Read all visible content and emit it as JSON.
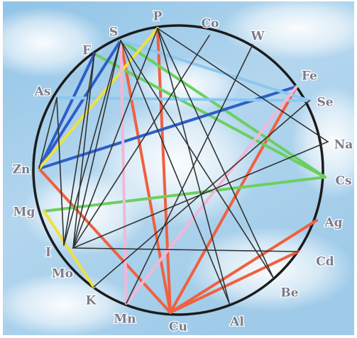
{
  "diagram": {
    "elements": [
      {
        "id": "P",
        "label": "P"
      },
      {
        "id": "Co",
        "label": "Co"
      },
      {
        "id": "W",
        "label": "W"
      },
      {
        "id": "Fe",
        "label": "Fe"
      },
      {
        "id": "Se",
        "label": "Se"
      },
      {
        "id": "Na",
        "label": "Na"
      },
      {
        "id": "Cs",
        "label": "Cs"
      },
      {
        "id": "Ag",
        "label": "Ag"
      },
      {
        "id": "Cd",
        "label": "Cd"
      },
      {
        "id": "Be",
        "label": "Be"
      },
      {
        "id": "Al",
        "label": "Al"
      },
      {
        "id": "Cu",
        "label": "Cu"
      },
      {
        "id": "Mn",
        "label": "Mn"
      },
      {
        "id": "K",
        "label": "K"
      },
      {
        "id": "Mo",
        "label": "Mo"
      },
      {
        "id": "I",
        "label": "I"
      },
      {
        "id": "Mg",
        "label": "Mg"
      },
      {
        "id": "Zn",
        "label": "Zn"
      },
      {
        "id": "As",
        "label": "As"
      },
      {
        "id": "F",
        "label": "F"
      },
      {
        "id": "S",
        "label": "S"
      }
    ],
    "connections": [
      {
        "from": "S",
        "to": "Cu",
        "color": "#f06040"
      },
      {
        "from": "P",
        "to": "Cu",
        "color": "#f06040"
      },
      {
        "from": "Fe",
        "to": "Cu",
        "color": "#f06040"
      },
      {
        "from": "Ag",
        "to": "Cu",
        "color": "#f06040"
      },
      {
        "from": "Cd",
        "to": "Cu",
        "color": "#f06040"
      },
      {
        "from": "Zn",
        "to": "Cu",
        "color": "#f06040"
      },
      {
        "from": "F",
        "to": "Cs",
        "color": "#6ccf60"
      },
      {
        "from": "S",
        "to": "Cs",
        "color": "#6ccf60"
      },
      {
        "from": "Mg",
        "to": "Cs",
        "color": "#6ccf60"
      },
      {
        "from": "Zn",
        "to": "Fe",
        "color": "#2d5fc8"
      },
      {
        "from": "Zn",
        "to": "S",
        "color": "#2d5fc8"
      },
      {
        "from": "Zn",
        "to": "F",
        "color": "#2d5fc8"
      },
      {
        "from": "S",
        "to": "Se",
        "color": "#8cc8f0"
      },
      {
        "from": "As",
        "to": "Se",
        "color": "#8cc8f0"
      },
      {
        "from": "P",
        "to": "Zn",
        "color": "#f0e040"
      },
      {
        "from": "Mg",
        "to": "K",
        "color": "#f0e040"
      },
      {
        "from": "Mn",
        "to": "Fe",
        "color": "#f0b8d8"
      },
      {
        "from": "Mn",
        "to": "S",
        "color": "#f0b8d8"
      },
      {
        "from": "Zn",
        "to": "As",
        "color": "#333333"
      },
      {
        "from": "I",
        "to": "As",
        "color": "#333333"
      },
      {
        "from": "I",
        "to": "S",
        "color": "#333333"
      },
      {
        "from": "I",
        "to": "F",
        "color": "#333333"
      },
      {
        "from": "Mo",
        "to": "F",
        "color": "#333333"
      },
      {
        "from": "Mo",
        "to": "S",
        "color": "#333333"
      },
      {
        "from": "Mo",
        "to": "P",
        "color": "#333333"
      },
      {
        "from": "Mo",
        "to": "Co",
        "color": "#333333"
      },
      {
        "from": "Mo",
        "to": "Na",
        "color": "#333333"
      },
      {
        "from": "K",
        "to": "Se",
        "color": "#333333"
      },
      {
        "from": "Mn",
        "to": "W",
        "color": "#333333"
      },
      {
        "from": "S",
        "to": "Al",
        "color": "#333333"
      },
      {
        "from": "S",
        "to": "Be",
        "color": "#333333"
      },
      {
        "from": "P",
        "to": "Be",
        "color": "#333333"
      },
      {
        "from": "P",
        "to": "Na",
        "color": "#333333"
      },
      {
        "from": "P",
        "to": "Al",
        "color": "#333333"
      },
      {
        "from": "Mo",
        "to": "Cd",
        "color": "#333333"
      }
    ]
  }
}
